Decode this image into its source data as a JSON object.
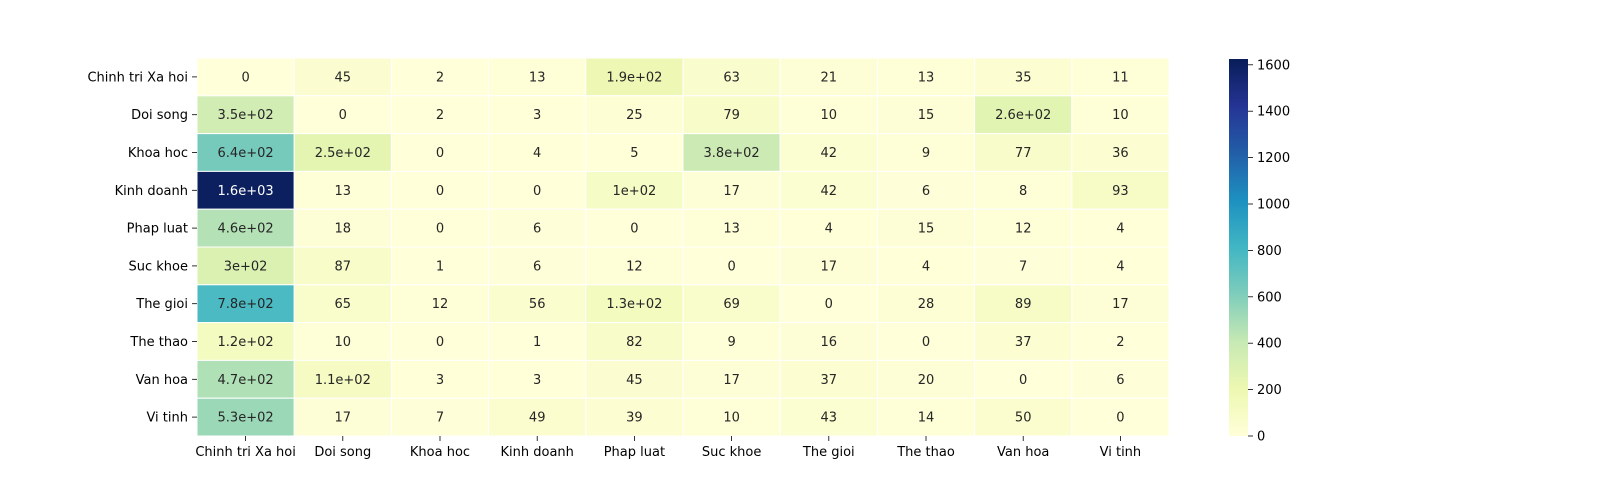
{
  "chart_data": {
    "type": "heatmap",
    "title": "",
    "xlabel": "",
    "ylabel": "",
    "x_categories": [
      "Chinh tri Xa hoi",
      "Doi song",
      "Khoa hoc",
      "Kinh doanh",
      "Phap luat",
      "Suc khoe",
      "The gioi",
      "The thao",
      "Van hoa",
      "Vi tinh"
    ],
    "y_categories": [
      "Chinh tri Xa hoi",
      "Doi song",
      "Khoa hoc",
      "Kinh doanh",
      "Phap luat",
      "Suc khoe",
      "The gioi",
      "The thao",
      "Van hoa",
      "Vi tinh"
    ],
    "values": [
      [
        0,
        45,
        2,
        13,
        190,
        63,
        21,
        13,
        35,
        11
      ],
      [
        350,
        0,
        2,
        3,
        25,
        79,
        10,
        15,
        260,
        10
      ],
      [
        640,
        250,
        0,
        4,
        5,
        380,
        42,
        9,
        77,
        36
      ],
      [
        1600,
        13,
        0,
        0,
        100,
        17,
        42,
        6,
        8,
        93
      ],
      [
        460,
        18,
        0,
        6,
        0,
        13,
        4,
        15,
        12,
        4
      ],
      [
        300,
        87,
        1,
        6,
        12,
        0,
        17,
        4,
        7,
        4
      ],
      [
        780,
        65,
        12,
        56,
        130,
        69,
        0,
        28,
        89,
        17
      ],
      [
        120,
        10,
        0,
        1,
        82,
        9,
        16,
        0,
        37,
        2
      ],
      [
        470,
        110,
        3,
        3,
        45,
        17,
        37,
        20,
        0,
        6
      ],
      [
        530,
        17,
        7,
        49,
        39,
        10,
        43,
        14,
        50,
        0
      ]
    ],
    "labels": [
      [
        "0",
        "45",
        "2",
        "13",
        "1.9e+02",
        "63",
        "21",
        "13",
        "35",
        "11"
      ],
      [
        "3.5e+02",
        "0",
        "2",
        "3",
        "25",
        "79",
        "10",
        "15",
        "2.6e+02",
        "10"
      ],
      [
        "6.4e+02",
        "2.5e+02",
        "0",
        "4",
        "5",
        "3.8e+02",
        "42",
        "9",
        "77",
        "36"
      ],
      [
        "1.6e+03",
        "13",
        "0",
        "0",
        "1e+02",
        "17",
        "42",
        "6",
        "8",
        "93"
      ],
      [
        "4.6e+02",
        "18",
        "0",
        "6",
        "0",
        "13",
        "4",
        "15",
        "12",
        "4"
      ],
      [
        "3e+02",
        "87",
        "1",
        "6",
        "12",
        "0",
        "17",
        "4",
        "7",
        "4"
      ],
      [
        "7.8e+02",
        "65",
        "12",
        "56",
        "1.3e+02",
        "69",
        "0",
        "28",
        "89",
        "17"
      ],
      [
        "1.2e+02",
        "10",
        "0",
        "1",
        "82",
        "9",
        "16",
        "0",
        "37",
        "2"
      ],
      [
        "4.7e+02",
        "1.1e+02",
        "3",
        "3",
        "45",
        "17",
        "37",
        "20",
        "0",
        "6"
      ],
      [
        "5.3e+02",
        "17",
        "7",
        "49",
        "39",
        "10",
        "43",
        "14",
        "50",
        "0"
      ]
    ],
    "colormap": "YlGnBu",
    "colormap_stops": [
      "#ffffd9",
      "#edf8b1",
      "#c7e9b4",
      "#7fcdbb",
      "#41b6c4",
      "#1d91c0",
      "#225ea8",
      "#253494",
      "#081d58"
    ],
    "vmin": 0,
    "vmax": 1625,
    "colorbar_ticks": [
      "0",
      "200",
      "400",
      "600",
      "800",
      "1000",
      "1200",
      "1400",
      "1600"
    ],
    "light_text_color": "#ffffff",
    "dark_text_color": "#262626",
    "cell_separator_color": "#ffffff"
  }
}
